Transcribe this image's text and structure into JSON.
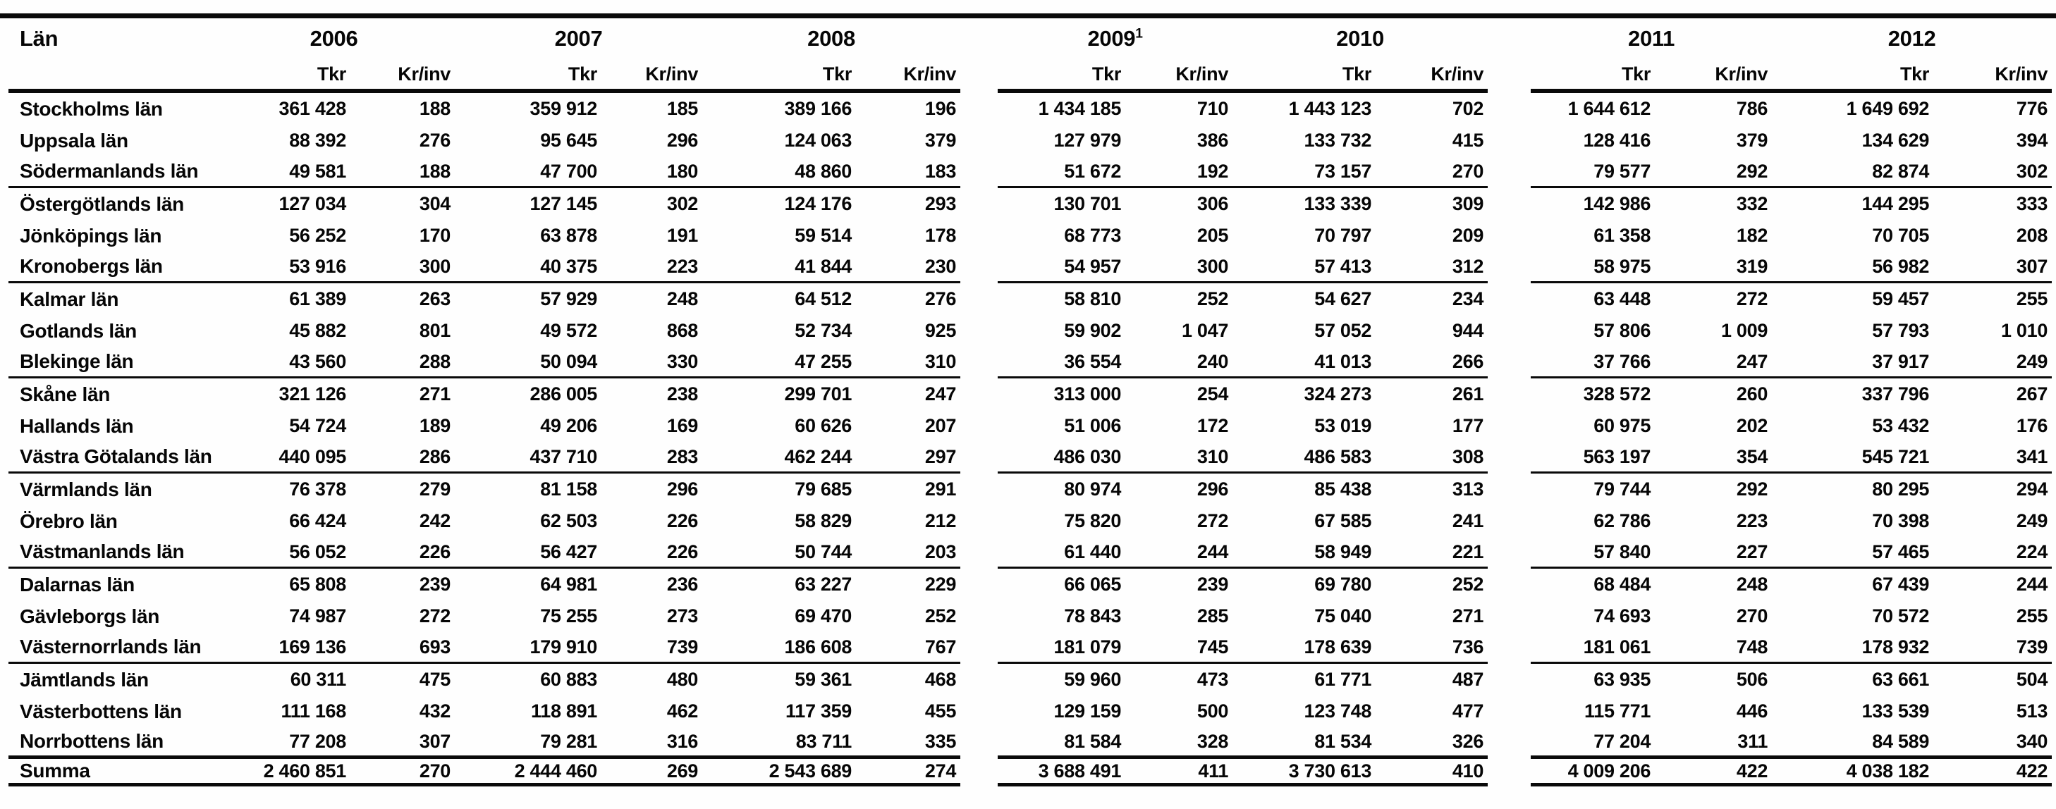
{
  "table": {
    "county_header": "Län",
    "tkr_label": "Tkr",
    "krinv_label": "Kr/inv",
    "panels": [
      {
        "years": [
          {
            "label": "2006",
            "sup": ""
          },
          {
            "label": "2007",
            "sup": ""
          },
          {
            "label": "2008",
            "sup": ""
          }
        ]
      },
      {
        "years": [
          {
            "label": "2009",
            "sup": "1"
          },
          {
            "label": "2010",
            "sup": ""
          }
        ]
      },
      {
        "years": [
          {
            "label": "2011",
            "sup": ""
          },
          {
            "label": "2012",
            "sup": ""
          }
        ]
      }
    ],
    "rows": [
      {
        "name": "Stockholms län",
        "group_end": false,
        "values": [
          "361 428",
          "188",
          "359 912",
          "185",
          "389 166",
          "196",
          "1 434 185",
          "710",
          "1 443 123",
          "702",
          "1 644 612",
          "786",
          "1 649 692",
          "776"
        ]
      },
      {
        "name": "Uppsala län",
        "group_end": false,
        "values": [
          "88 392",
          "276",
          "95 645",
          "296",
          "124 063",
          "379",
          "127 979",
          "386",
          "133 732",
          "415",
          "128 416",
          "379",
          "134 629",
          "394"
        ]
      },
      {
        "name": "Södermanlands län",
        "group_end": true,
        "values": [
          "49 581",
          "188",
          "47 700",
          "180",
          "48 860",
          "183",
          "51 672",
          "192",
          "73 157",
          "270",
          "79 577",
          "292",
          "82 874",
          "302"
        ]
      },
      {
        "name": "Östergötlands län",
        "group_end": false,
        "values": [
          "127 034",
          "304",
          "127 145",
          "302",
          "124 176",
          "293",
          "130 701",
          "306",
          "133 339",
          "309",
          "142 986",
          "332",
          "144 295",
          "333"
        ]
      },
      {
        "name": "Jönköpings län",
        "group_end": false,
        "values": [
          "56 252",
          "170",
          "63 878",
          "191",
          "59 514",
          "178",
          "68 773",
          "205",
          "70 797",
          "209",
          "61 358",
          "182",
          "70 705",
          "208"
        ]
      },
      {
        "name": "Kronobergs län",
        "group_end": true,
        "values": [
          "53 916",
          "300",
          "40 375",
          "223",
          "41 844",
          "230",
          "54 957",
          "300",
          "57 413",
          "312",
          "58 975",
          "319",
          "56 982",
          "307"
        ]
      },
      {
        "name": "Kalmar län",
        "group_end": false,
        "values": [
          "61 389",
          "263",
          "57 929",
          "248",
          "64 512",
          "276",
          "58 810",
          "252",
          "54 627",
          "234",
          "63 448",
          "272",
          "59 457",
          "255"
        ]
      },
      {
        "name": "Gotlands län",
        "group_end": false,
        "values": [
          "45 882",
          "801",
          "49 572",
          "868",
          "52 734",
          "925",
          "59 902",
          "1 047",
          "57 052",
          "944",
          "57 806",
          "1 009",
          "57 793",
          "1 010"
        ]
      },
      {
        "name": "Blekinge län",
        "group_end": true,
        "values": [
          "43 560",
          "288",
          "50 094",
          "330",
          "47 255",
          "310",
          "36 554",
          "240",
          "41 013",
          "266",
          "37 766",
          "247",
          "37 917",
          "249"
        ]
      },
      {
        "name": "Skåne län",
        "group_end": false,
        "values": [
          "321 126",
          "271",
          "286 005",
          "238",
          "299 701",
          "247",
          "313 000",
          "254",
          "324 273",
          "261",
          "328 572",
          "260",
          "337 796",
          "267"
        ]
      },
      {
        "name": "Hallands län",
        "group_end": false,
        "values": [
          "54 724",
          "189",
          "49 206",
          "169",
          "60 626",
          "207",
          "51 006",
          "172",
          "53 019",
          "177",
          "60 975",
          "202",
          "53 432",
          "176"
        ]
      },
      {
        "name": "Västra Götalands län",
        "group_end": true,
        "values": [
          "440 095",
          "286",
          "437 710",
          "283",
          "462 244",
          "297",
          "486 030",
          "310",
          "486 583",
          "308",
          "563 197",
          "354",
          "545 721",
          "341"
        ]
      },
      {
        "name": "Värmlands län",
        "group_end": false,
        "values": [
          "76 378",
          "279",
          "81 158",
          "296",
          "79 685",
          "291",
          "80 974",
          "296",
          "85 438",
          "313",
          "79 744",
          "292",
          "80 295",
          "294"
        ]
      },
      {
        "name": "Örebro län",
        "group_end": false,
        "values": [
          "66 424",
          "242",
          "62 503",
          "226",
          "58 829",
          "212",
          "75 820",
          "272",
          "67 585",
          "241",
          "62 786",
          "223",
          "70 398",
          "249"
        ]
      },
      {
        "name": "Västmanlands län",
        "group_end": true,
        "values": [
          "56 052",
          "226",
          "56 427",
          "226",
          "50 744",
          "203",
          "61 440",
          "244",
          "58 949",
          "221",
          "57 840",
          "227",
          "57 465",
          "224"
        ]
      },
      {
        "name": "Dalarnas län",
        "group_end": false,
        "values": [
          "65 808",
          "239",
          "64 981",
          "236",
          "63 227",
          "229",
          "66 065",
          "239",
          "69 780",
          "252",
          "68 484",
          "248",
          "67 439",
          "244"
        ]
      },
      {
        "name": "Gävleborgs län",
        "group_end": false,
        "values": [
          "74 987",
          "272",
          "75 255",
          "273",
          "69 470",
          "252",
          "78 843",
          "285",
          "75 040",
          "271",
          "74 693",
          "270",
          "70 572",
          "255"
        ]
      },
      {
        "name": "Västernorrlands län",
        "group_end": true,
        "values": [
          "169 136",
          "693",
          "179 910",
          "739",
          "186 608",
          "767",
          "181 079",
          "745",
          "178 639",
          "736",
          "181 061",
          "748",
          "178 932",
          "739"
        ]
      },
      {
        "name": "Jämtlands län",
        "group_end": false,
        "values": [
          "60 311",
          "475",
          "60 883",
          "480",
          "59 361",
          "468",
          "59 960",
          "473",
          "61 771",
          "487",
          "63 935",
          "506",
          "63 661",
          "504"
        ]
      },
      {
        "name": "Västerbottens län",
        "group_end": false,
        "values": [
          "111 168",
          "432",
          "118 891",
          "462",
          "117 359",
          "455",
          "129 159",
          "500",
          "123 748",
          "477",
          "115 771",
          "446",
          "133 539",
          "513"
        ]
      },
      {
        "name": "Norrbottens län",
        "group_end": false,
        "values": [
          "77 208",
          "307",
          "79 281",
          "316",
          "83 711",
          "335",
          "81 584",
          "328",
          "81 534",
          "326",
          "77 204",
          "311",
          "84 589",
          "340"
        ]
      }
    ],
    "summary": {
      "name": "Summa",
      "values": [
        "2 460 851",
        "270",
        "2 444 460",
        "269",
        "2 543 689",
        "274",
        "3 688 491",
        "411",
        "3 730 613",
        "410",
        "4 009 206",
        "422",
        "4 038 182",
        "422"
      ]
    }
  }
}
